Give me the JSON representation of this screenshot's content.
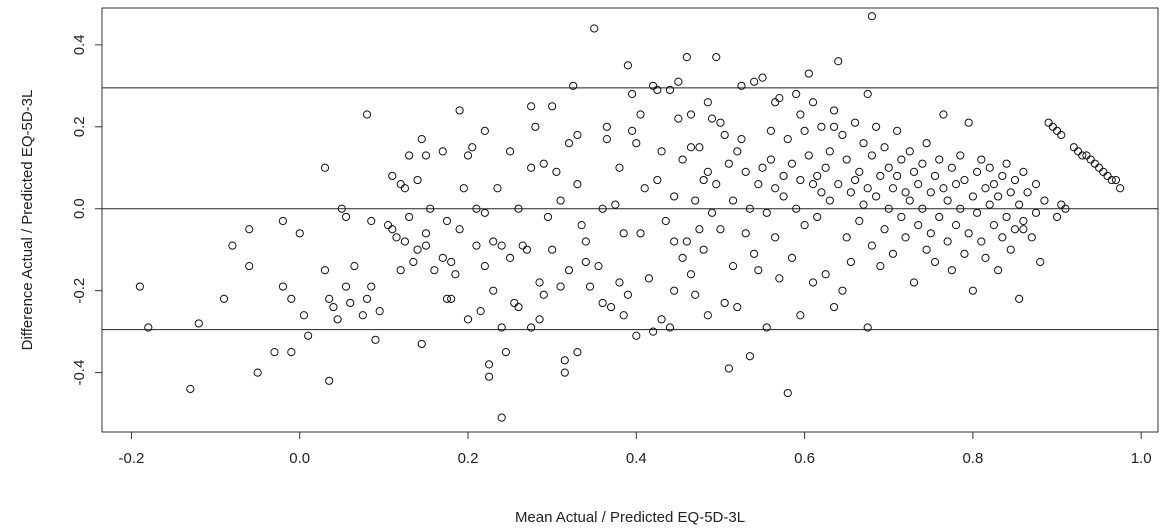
{
  "chart_data": {
    "type": "scatter",
    "title": "",
    "xlabel": "Mean Actual / Predicted EQ-5D-3L",
    "ylabel": "Difference Actual / Predicted EQ-5D-3L",
    "xlim": [
      -0.235,
      1.02
    ],
    "ylim": [
      -0.545,
      0.49
    ],
    "xticks": [
      "-0.2",
      "0.0",
      "0.2",
      "0.4",
      "0.6",
      "0.8",
      "1.0"
    ],
    "yticks": [
      "-0.4",
      "-0.2",
      "0.0",
      "0.2",
      "0.4"
    ],
    "hlines": [
      0.295,
      0.0,
      -0.295
    ],
    "grid": false,
    "marker": "open-circle",
    "points": [
      [
        -0.19,
        -0.19
      ],
      [
        -0.18,
        -0.29
      ],
      [
        -0.13,
        -0.44
      ],
      [
        -0.12,
        -0.28
      ],
      [
        -0.09,
        -0.22
      ],
      [
        -0.08,
        -0.09
      ],
      [
        -0.06,
        -0.05
      ],
      [
        -0.06,
        -0.14
      ],
      [
        -0.05,
        -0.4
      ],
      [
        -0.03,
        -0.35
      ],
      [
        -0.02,
        -0.03
      ],
      [
        -0.02,
        -0.19
      ],
      [
        -0.01,
        -0.35
      ],
      [
        -0.01,
        -0.22
      ],
      [
        0.0,
        -0.06
      ],
      [
        0.005,
        -0.26
      ],
      [
        0.01,
        -0.31
      ],
      [
        0.03,
        -0.15
      ],
      [
        0.03,
        0.1
      ],
      [
        0.035,
        -0.42
      ],
      [
        0.035,
        -0.22
      ],
      [
        0.04,
        -0.24
      ],
      [
        0.045,
        -0.27
      ],
      [
        0.05,
        0.0
      ],
      [
        0.055,
        -0.19
      ],
      [
        0.055,
        -0.02
      ],
      [
        0.06,
        -0.23
      ],
      [
        0.065,
        -0.14
      ],
      [
        0.075,
        -0.26
      ],
      [
        0.08,
        -0.22
      ],
      [
        0.08,
        0.23
      ],
      [
        0.085,
        -0.03
      ],
      [
        0.085,
        -0.19
      ],
      [
        0.09,
        -0.32
      ],
      [
        0.095,
        -0.25
      ],
      [
        0.105,
        -0.04
      ],
      [
        0.11,
        -0.05
      ],
      [
        0.11,
        0.08
      ],
      [
        0.115,
        -0.07
      ],
      [
        0.12,
        -0.15
      ],
      [
        0.12,
        0.06
      ],
      [
        0.125,
        -0.08
      ],
      [
        0.125,
        0.05
      ],
      [
        0.13,
        0.13
      ],
      [
        0.13,
        -0.02
      ],
      [
        0.135,
        -0.13
      ],
      [
        0.14,
        0.07
      ],
      [
        0.14,
        -0.1
      ],
      [
        0.145,
        0.17
      ],
      [
        0.145,
        -0.33
      ],
      [
        0.15,
        0.13
      ],
      [
        0.15,
        -0.09
      ],
      [
        0.155,
        0.0
      ],
      [
        0.16,
        -0.15
      ],
      [
        0.17,
        0.14
      ],
      [
        0.175,
        -0.03
      ],
      [
        0.175,
        -0.22
      ],
      [
        0.18,
        -0.13
      ],
      [
        0.185,
        -0.16
      ],
      [
        0.19,
        0.24
      ],
      [
        0.19,
        -0.05
      ],
      [
        0.195,
        0.05
      ],
      [
        0.2,
        -0.27
      ],
      [
        0.2,
        0.13
      ],
      [
        0.205,
        0.15
      ],
      [
        0.21,
        -0.09
      ],
      [
        0.21,
        0.0
      ],
      [
        0.215,
        -0.25
      ],
      [
        0.22,
        -0.01
      ],
      [
        0.22,
        0.19
      ],
      [
        0.225,
        -0.38
      ],
      [
        0.225,
        -0.41
      ],
      [
        0.23,
        -0.08
      ],
      [
        0.23,
        -0.2
      ],
      [
        0.235,
        0.05
      ],
      [
        0.24,
        -0.51
      ],
      [
        0.24,
        -0.29
      ],
      [
        0.245,
        -0.35
      ],
      [
        0.25,
        -0.12
      ],
      [
        0.25,
        0.14
      ],
      [
        0.255,
        -0.23
      ],
      [
        0.26,
        0.0
      ],
      [
        0.265,
        -0.09
      ],
      [
        0.27,
        -0.1
      ],
      [
        0.275,
        -0.29
      ],
      [
        0.275,
        0.25
      ],
      [
        0.28,
        0.2
      ],
      [
        0.285,
        -0.18
      ],
      [
        0.29,
        -0.21
      ],
      [
        0.29,
        0.11
      ],
      [
        0.295,
        -0.02
      ],
      [
        0.3,
        -0.1
      ],
      [
        0.305,
        0.09
      ],
      [
        0.31,
        0.02
      ],
      [
        0.315,
        -0.37
      ],
      [
        0.315,
        -0.4
      ],
      [
        0.32,
        -0.15
      ],
      [
        0.32,
        0.16
      ],
      [
        0.325,
        0.3
      ],
      [
        0.33,
        0.06
      ],
      [
        0.33,
        -0.35
      ],
      [
        0.335,
        -0.04
      ],
      [
        0.34,
        -0.13
      ],
      [
        0.345,
        -0.19
      ],
      [
        0.35,
        0.44
      ],
      [
        0.355,
        -0.14
      ],
      [
        0.36,
        0.0
      ],
      [
        0.365,
        0.17
      ],
      [
        0.37,
        -0.24
      ],
      [
        0.375,
        0.01
      ],
      [
        0.38,
        0.1
      ],
      [
        0.38,
        -0.18
      ],
      [
        0.385,
        -0.26
      ],
      [
        0.39,
        0.35
      ],
      [
        0.39,
        -0.21
      ],
      [
        0.395,
        0.19
      ],
      [
        0.395,
        0.28
      ],
      [
        0.4,
        -0.31
      ],
      [
        0.4,
        0.16
      ],
      [
        0.405,
        -0.06
      ],
      [
        0.41,
        0.05
      ],
      [
        0.415,
        -0.17
      ],
      [
        0.42,
        0.3
      ],
      [
        0.42,
        -0.3
      ],
      [
        0.425,
        0.29
      ],
      [
        0.43,
        -0.27
      ],
      [
        0.43,
        0.14
      ],
      [
        0.435,
        -0.03
      ],
      [
        0.44,
        0.29
      ],
      [
        0.44,
        -0.29
      ],
      [
        0.445,
        0.03
      ],
      [
        0.445,
        -0.2
      ],
      [
        0.45,
        0.31
      ],
      [
        0.45,
        0.22
      ],
      [
        0.455,
        -0.12
      ],
      [
        0.455,
        0.12
      ],
      [
        0.46,
        0.37
      ],
      [
        0.46,
        -0.08
      ],
      [
        0.465,
        -0.16
      ],
      [
        0.465,
        0.23
      ],
      [
        0.47,
        0.02
      ],
      [
        0.47,
        -0.21
      ],
      [
        0.475,
        0.15
      ],
      [
        0.475,
        -0.05
      ],
      [
        0.48,
        0.07
      ],
      [
        0.48,
        -0.1
      ],
      [
        0.485,
        0.26
      ],
      [
        0.485,
        -0.26
      ],
      [
        0.49,
        0.22
      ],
      [
        0.49,
        -0.01
      ],
      [
        0.495,
        0.37
      ],
      [
        0.495,
        0.06
      ],
      [
        0.5,
        -0.05
      ],
      [
        0.5,
        0.21
      ],
      [
        0.505,
        -0.23
      ],
      [
        0.505,
        0.18
      ],
      [
        0.51,
        -0.39
      ],
      [
        0.51,
        0.11
      ],
      [
        0.515,
        -0.14
      ],
      [
        0.515,
        0.02
      ],
      [
        0.52,
        0.14
      ],
      [
        0.52,
        -0.24
      ],
      [
        0.525,
        0.3
      ],
      [
        0.525,
        0.17
      ],
      [
        0.53,
        -0.06
      ],
      [
        0.53,
        0.09
      ],
      [
        0.535,
        -0.36
      ],
      [
        0.535,
        0.0
      ],
      [
        0.54,
        0.31
      ],
      [
        0.54,
        -0.11
      ],
      [
        0.545,
        0.06
      ],
      [
        0.545,
        -0.15
      ],
      [
        0.55,
        0.32
      ],
      [
        0.55,
        0.1
      ],
      [
        0.555,
        -0.01
      ],
      [
        0.555,
        -0.29
      ],
      [
        0.56,
        0.19
      ],
      [
        0.56,
        0.12
      ],
      [
        0.565,
        -0.07
      ],
      [
        0.565,
        0.05
      ],
      [
        0.57,
        0.27
      ],
      [
        0.57,
        -0.17
      ],
      [
        0.575,
        0.08
      ],
      [
        0.575,
        0.03
      ],
      [
        0.58,
        -0.45
      ],
      [
        0.58,
        0.17
      ],
      [
        0.585,
        -0.12
      ],
      [
        0.585,
        0.11
      ],
      [
        0.59,
        0.28
      ],
      [
        0.59,
        0.0
      ],
      [
        0.595,
        -0.26
      ],
      [
        0.595,
        0.07
      ],
      [
        0.6,
        0.19
      ],
      [
        0.6,
        -0.04
      ],
      [
        0.605,
        0.13
      ],
      [
        0.605,
        0.33
      ],
      [
        0.61,
        -0.18
      ],
      [
        0.61,
        0.06
      ],
      [
        0.615,
        0.08
      ],
      [
        0.615,
        -0.02
      ],
      [
        0.62,
        0.2
      ],
      [
        0.62,
        0.04
      ],
      [
        0.625,
        -0.16
      ],
      [
        0.625,
        0.1
      ],
      [
        0.63,
        0.02
      ],
      [
        0.63,
        0.14
      ],
      [
        0.635,
        -0.24
      ],
      [
        0.635,
        0.24
      ],
      [
        0.64,
        0.36
      ],
      [
        0.64,
        0.06
      ],
      [
        0.645,
        -0.2
      ],
      [
        0.645,
        0.18
      ],
      [
        0.65,
        -0.07
      ],
      [
        0.65,
        0.12
      ],
      [
        0.655,
        0.04
      ],
      [
        0.655,
        -0.13
      ],
      [
        0.66,
        0.21
      ],
      [
        0.66,
        0.07
      ],
      [
        0.665,
        -0.03
      ],
      [
        0.665,
        0.09
      ],
      [
        0.67,
        0.16
      ],
      [
        0.67,
        0.01
      ],
      [
        0.675,
        -0.29
      ],
      [
        0.675,
        0.05
      ],
      [
        0.68,
        0.13
      ],
      [
        0.68,
        -0.09
      ],
      [
        0.685,
        0.2
      ],
      [
        0.685,
        0.03
      ],
      [
        0.69,
        0.08
      ],
      [
        0.69,
        -0.14
      ],
      [
        0.695,
        0.15
      ],
      [
        0.695,
        -0.05
      ],
      [
        0.7,
        0.1
      ],
      [
        0.7,
        0.0
      ],
      [
        0.705,
        -0.11
      ],
      [
        0.705,
        0.05
      ],
      [
        0.71,
        0.19
      ],
      [
        0.71,
        0.08
      ],
      [
        0.715,
        -0.02
      ],
      [
        0.715,
        0.12
      ],
      [
        0.72,
        0.04
      ],
      [
        0.72,
        -0.07
      ],
      [
        0.725,
        0.14
      ],
      [
        0.725,
        0.02
      ],
      [
        0.73,
        -0.18
      ],
      [
        0.73,
        0.09
      ],
      [
        0.735,
        0.06
      ],
      [
        0.735,
        -0.04
      ],
      [
        0.74,
        0.11
      ],
      [
        0.74,
        0.0
      ],
      [
        0.745,
        -0.1
      ],
      [
        0.745,
        0.16
      ],
      [
        0.75,
        0.04
      ],
      [
        0.75,
        -0.06
      ],
      [
        0.755,
        0.08
      ],
      [
        0.755,
        -0.13
      ],
      [
        0.76,
        0.12
      ],
      [
        0.76,
        -0.02
      ],
      [
        0.765,
        0.05
      ],
      [
        0.765,
        0.23
      ],
      [
        0.77,
        -0.08
      ],
      [
        0.77,
        0.02
      ],
      [
        0.775,
        0.1
      ],
      [
        0.775,
        -0.15
      ],
      [
        0.78,
        0.06
      ],
      [
        0.78,
        -0.04
      ],
      [
        0.785,
        0.13
      ],
      [
        0.785,
        0.0
      ],
      [
        0.79,
        -0.11
      ],
      [
        0.79,
        0.07
      ],
      [
        0.795,
        0.21
      ],
      [
        0.795,
        -0.06
      ],
      [
        0.8,
        0.03
      ],
      [
        0.8,
        -0.2
      ],
      [
        0.805,
        0.09
      ],
      [
        0.805,
        -0.01
      ],
      [
        0.81,
        0.12
      ],
      [
        0.81,
        -0.08
      ],
      [
        0.815,
        0.05
      ],
      [
        0.815,
        -0.12
      ],
      [
        0.82,
        0.01
      ],
      [
        0.82,
        0.1
      ],
      [
        0.825,
        -0.04
      ],
      [
        0.825,
        0.06
      ],
      [
        0.83,
        -0.15
      ],
      [
        0.83,
        0.03
      ],
      [
        0.835,
        0.08
      ],
      [
        0.835,
        -0.07
      ],
      [
        0.84,
        0.11
      ],
      [
        0.84,
        -0.02
      ],
      [
        0.845,
        0.04
      ],
      [
        0.845,
        -0.1
      ],
      [
        0.85,
        0.07
      ],
      [
        0.85,
        -0.05
      ],
      [
        0.855,
        0.01
      ],
      [
        0.855,
        -0.22
      ],
      [
        0.86,
        0.09
      ],
      [
        0.86,
        -0.03
      ],
      [
        0.865,
        0.04
      ],
      [
        0.87,
        -0.07
      ],
      [
        0.875,
        0.06
      ],
      [
        0.88,
        -0.13
      ],
      [
        0.885,
        0.02
      ],
      [
        0.89,
        0.21
      ],
      [
        0.895,
        0.2
      ],
      [
        0.9,
        0.19
      ],
      [
        0.905,
        0.18
      ],
      [
        0.91,
        0.0
      ],
      [
        0.92,
        0.15
      ],
      [
        0.925,
        0.14
      ],
      [
        0.93,
        0.13
      ],
      [
        0.935,
        0.13
      ],
      [
        0.94,
        0.12
      ],
      [
        0.945,
        0.11
      ],
      [
        0.95,
        0.1
      ],
      [
        0.955,
        0.09
      ],
      [
        0.96,
        0.08
      ],
      [
        0.965,
        0.07
      ],
      [
        0.97,
        0.07
      ],
      [
        0.975,
        0.05
      ],
      [
        0.86,
        -0.05
      ],
      [
        0.875,
        -0.01
      ],
      [
        0.9,
        -0.02
      ],
      [
        0.905,
        0.01
      ],
      [
        0.68,
        0.47
      ],
      [
        0.565,
        0.26
      ],
      [
        0.635,
        0.2
      ],
      [
        0.61,
        0.26
      ],
      [
        0.595,
        0.23
      ],
      [
        0.675,
        0.28
      ],
      [
        0.275,
        0.1
      ],
      [
        0.3,
        0.25
      ],
      [
        0.33,
        0.18
      ],
      [
        0.365,
        0.2
      ],
      [
        0.385,
        -0.06
      ],
      [
        0.405,
        0.23
      ],
      [
        0.425,
        0.07
      ],
      [
        0.445,
        -0.08
      ],
      [
        0.465,
        0.15
      ],
      [
        0.485,
        0.09
      ],
      [
        0.15,
        -0.06
      ],
      [
        0.17,
        -0.12
      ],
      [
        0.18,
        -0.22
      ],
      [
        0.22,
        -0.14
      ],
      [
        0.24,
        -0.09
      ],
      [
        0.26,
        -0.24
      ],
      [
        0.285,
        -0.27
      ],
      [
        0.31,
        -0.19
      ],
      [
        0.34,
        -0.08
      ],
      [
        0.36,
        -0.23
      ]
    ]
  }
}
